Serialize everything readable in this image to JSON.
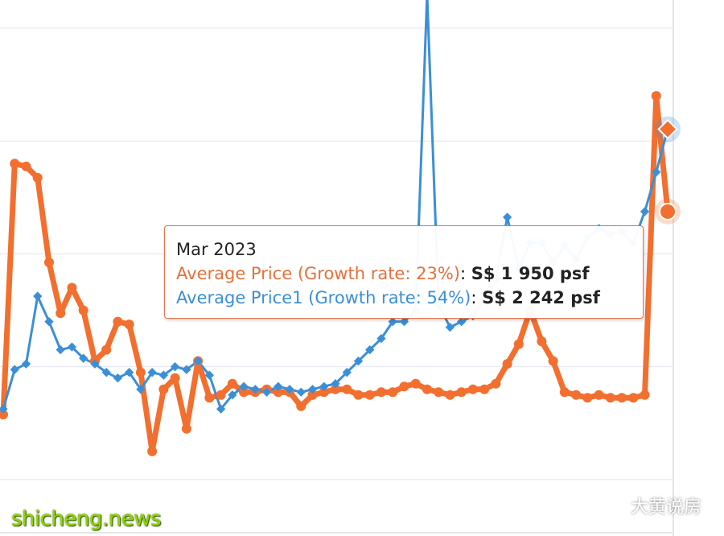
{
  "chart_data": {
    "type": "line",
    "tooltip": {
      "title": "Mar 2023",
      "rows": [
        {
          "label": "Average Price (Growth rate: 23%)",
          "value": "S$ 1 950 psf",
          "color": "#e8703a"
        },
        {
          "label": "Average Price1 (Growth rate: 54%)",
          "value": "S$ 2 242 psf",
          "color": "#3b8fd6"
        }
      ]
    },
    "ylim": [
      800,
      2700
    ],
    "gridlines": [
      1000,
      1400,
      1800,
      2200,
      2600
    ],
    "series": [
      {
        "name": "Average Price",
        "color": "#f26f2f",
        "values": [
          1230,
          2120,
          2110,
          2070,
          1770,
          1590,
          1680,
          1600,
          1420,
          1460,
          1560,
          1550,
          1380,
          1100,
          1320,
          1360,
          1180,
          1420,
          1290,
          1300,
          1340,
          1310,
          1310,
          1320,
          1310,
          1310,
          1260,
          1300,
          1310,
          1320,
          1320,
          1300,
          1300,
          1310,
          1310,
          1330,
          1340,
          1320,
          1310,
          1300,
          1310,
          1320,
          1320,
          1340,
          1410,
          1480,
          1600,
          1490,
          1420,
          1310,
          1300,
          1290,
          1300,
          1290,
          1290,
          1290,
          1300,
          2360,
          1950
        ]
      },
      {
        "name": "Average Price1",
        "color": "#3b8fd6",
        "values": [
          1250,
          1390,
          1410,
          1650,
          1560,
          1460,
          1470,
          1430,
          1410,
          1380,
          1360,
          1380,
          1320,
          1380,
          1370,
          1400,
          1390,
          1420,
          1370,
          1250,
          1300,
          1330,
          1320,
          1310,
          1330,
          1320,
          1310,
          1320,
          1330,
          1340,
          1380,
          1420,
          1460,
          1500,
          1560,
          1560,
          1600,
          2720,
          1620,
          1540,
          1560,
          1580,
          1640,
          1710,
          1930,
          1750,
          1840,
          1840,
          1770,
          1830,
          1780,
          1860,
          1890,
          1870,
          1880,
          1840,
          1950,
          2090,
          2242
        ]
      }
    ],
    "highlight_index": 58
  },
  "watermark": "shicheng.news",
  "brand": "大黄说房",
  "brand_icon": "wechat-icon"
}
